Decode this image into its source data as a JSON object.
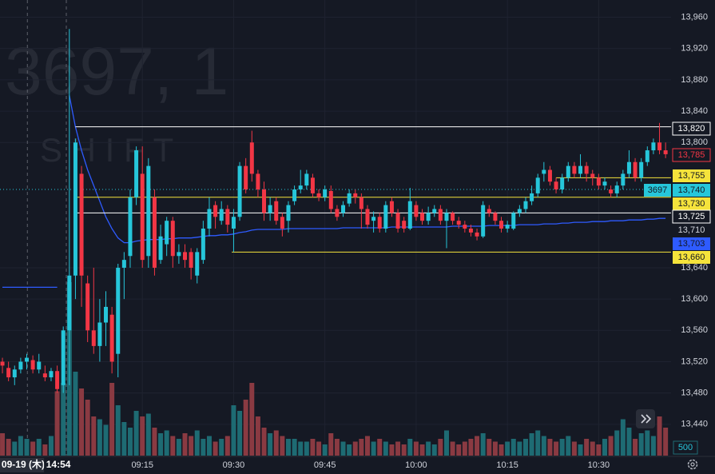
{
  "watermark": {
    "symbol": "3697, 1",
    "name": "S H I F T"
  },
  "chart_data": {
    "type": "candlestick",
    "x": [
      -8,
      -7,
      -6,
      -5,
      -4,
      -3,
      -2,
      -1,
      0,
      1,
      2,
      3,
      4,
      5,
      6,
      7,
      8,
      9,
      10,
      11,
      12,
      13,
      14,
      15,
      16,
      17,
      18,
      19,
      20,
      21,
      22,
      23,
      24,
      25,
      26,
      27,
      28,
      29,
      30,
      31,
      32,
      33,
      34,
      35,
      36,
      37,
      38,
      39,
      40,
      41,
      42,
      43,
      44,
      45,
      46,
      47,
      48,
      49,
      50,
      51,
      52,
      53,
      54,
      55,
      56,
      57,
      58,
      59,
      60,
      61,
      62,
      63,
      64,
      65,
      66,
      67,
      68,
      69,
      70,
      71,
      72,
      73,
      74,
      75,
      76,
      77,
      78,
      79,
      80,
      81,
      82,
      83,
      84,
      85,
      86,
      87,
      88,
      89,
      90,
      91,
      92,
      93,
      94,
      95,
      96,
      97,
      98,
      99,
      100,
      101
    ],
    "open": [
      13520,
      13512,
      13500,
      13510,
      13520,
      13522,
      13510,
      13505,
      13500,
      13508,
      13490,
      13560,
      13630,
      13760,
      13620,
      13560,
      13540,
      13570,
      13580,
      13530,
      13640,
      13655,
      13730,
      13760,
      13655,
      13730,
      13650,
      13670,
      13700,
      13655,
      13660,
      13660,
      13630,
      13650,
      13690,
      13720,
      13700,
      13715,
      13690,
      13705,
      13770,
      13800,
      13760,
      13740,
      13710,
      13725,
      13705,
      13700,
      13725,
      13740,
      13745,
      13755,
      13735,
      13730,
      13738,
      13715,
      13710,
      13722,
      13735,
      13730,
      13715,
      13700,
      13705,
      13690,
      13725,
      13710,
      13700,
      13690,
      13720,
      13710,
      13700,
      13710,
      13715,
      13700,
      13710,
      13700,
      13695,
      13690,
      13685,
      13680,
      13715,
      13710,
      13700,
      13690,
      13690,
      13710,
      13715,
      13725,
      13735,
      13760,
      13765,
      13750,
      13740,
      13755,
      13770,
      13760,
      13770,
      13760,
      13755,
      13745,
      13740,
      13735,
      13745,
      13760,
      13775,
      13755,
      13775,
      13790,
      13800,
      13790
    ],
    "high": [
      13525,
      13520,
      13515,
      13525,
      13530,
      13528,
      13530,
      13515,
      13512,
      13515,
      13565,
      13945,
      13805,
      13770,
      13630,
      13640,
      13600,
      13610,
      13590,
      13645,
      13660,
      13740,
      13795,
      13795,
      13780,
      13740,
      13695,
      13705,
      13705,
      13670,
      13670,
      13665,
      13665,
      13700,
      13730,
      13725,
      13725,
      13720,
      13715,
      13775,
      13780,
      13815,
      13765,
      13750,
      13730,
      13730,
      13710,
      13725,
      13745,
      13765,
      13765,
      13760,
      13740,
      13745,
      13745,
      13720,
      13725,
      13740,
      13740,
      13735,
      13720,
      13712,
      13710,
      13725,
      13730,
      13715,
      13705,
      13742,
      13725,
      13715,
      13718,
      13720,
      13720,
      13715,
      13712,
      13705,
      13700,
      13695,
      13690,
      13725,
      13720,
      13712,
      13705,
      13700,
      13712,
      13720,
      13730,
      13745,
      13760,
      13775,
      13770,
      13755,
      13760,
      13775,
      13775,
      13785,
      13775,
      13765,
      13760,
      13755,
      13745,
      13750,
      13765,
      13790,
      13780,
      13780,
      13795,
      13805,
      13825,
      13800
    ],
    "low": [
      13505,
      13495,
      13490,
      13505,
      13510,
      13505,
      13505,
      13495,
      13495,
      13480,
      13480,
      13490,
      13600,
      13590,
      13545,
      13530,
      13520,
      13540,
      13505,
      13500,
      13600,
      13640,
      13720,
      13640,
      13640,
      13630,
      13645,
      13655,
      13640,
      13645,
      13640,
      13625,
      13620,
      13645,
      13680,
      13690,
      13695,
      13685,
      13660,
      13700,
      13735,
      13750,
      13730,
      13700,
      13700,
      13695,
      13680,
      13685,
      13720,
      13735,
      13740,
      13730,
      13725,
      13725,
      13710,
      13700,
      13705,
      13718,
      13722,
      13690,
      13690,
      13685,
      13685,
      13685,
      13705,
      13685,
      13685,
      13688,
      13700,
      13695,
      13695,
      13705,
      13695,
      13665,
      13695,
      13690,
      13685,
      13680,
      13675,
      13678,
      13705,
      13695,
      13685,
      13685,
      13688,
      13705,
      13710,
      13720,
      13730,
      13750,
      13745,
      13735,
      13735,
      13750,
      13755,
      13755,
      13750,
      13745,
      13740,
      13740,
      13730,
      13730,
      13740,
      13755,
      13750,
      13750,
      13770,
      13785,
      13785,
      13780
    ],
    "close": [
      13515,
      13500,
      13510,
      13520,
      13525,
      13510,
      13520,
      13500,
      13508,
      13485,
      13560,
      13630,
      13800,
      13630,
      13560,
      13540,
      13570,
      13590,
      13520,
      13640,
      13650,
      13730,
      13790,
      13650,
      13770,
      13640,
      13680,
      13700,
      13655,
      13660,
      13650,
      13640,
      13660,
      13690,
      13715,
      13705,
      13715,
      13695,
      13705,
      13770,
      13740,
      13760,
      13740,
      13710,
      13720,
      13700,
      13690,
      13720,
      13740,
      13745,
      13760,
      13735,
      13730,
      13740,
      13715,
      13705,
      13720,
      13735,
      13730,
      13715,
      13695,
      13705,
      13690,
      13720,
      13710,
      13690,
      13690,
      13725,
      13705,
      13700,
      13710,
      13715,
      13700,
      13710,
      13700,
      13695,
      13690,
      13685,
      13680,
      13720,
      13710,
      13700,
      13690,
      13695,
      13710,
      13715,
      13725,
      13735,
      13755,
      13765,
      13750,
      13740,
      13755,
      13770,
      13760,
      13770,
      13760,
      13755,
      13745,
      13750,
      13735,
      13745,
      13760,
      13775,
      13755,
      13775,
      13790,
      13800,
      13790,
      13785
    ],
    "up_color": "#26c6da",
    "down_color": "#f23645",
    "volume": {
      "up_color": "#1e6b73",
      "down_color": "#8a3a42",
      "ylim": [
        0,
        4000
      ],
      "values": [
        400,
        300,
        250,
        350,
        300,
        250,
        300,
        200,
        350,
        1150,
        1300,
        3100,
        1500,
        1200,
        1000,
        700,
        650,
        550,
        1300,
        900,
        600,
        500,
        800,
        700,
        750,
        500,
        400,
        450,
        350,
        300,
        400,
        350,
        450,
        300,
        350,
        250,
        300,
        350,
        900,
        800,
        1000,
        1300,
        700,
        500,
        400,
        450,
        350,
        300,
        300,
        250,
        250,
        300,
        250,
        200,
        400,
        300,
        250,
        200,
        250,
        300,
        350,
        250,
        300,
        250,
        200,
        250,
        200,
        300,
        250,
        200,
        250,
        200,
        300,
        450,
        250,
        200,
        250,
        300,
        350,
        400,
        300,
        250,
        200,
        250,
        300,
        250,
        300,
        400,
        450,
        350,
        300,
        250,
        300,
        350,
        250,
        200,
        300,
        250,
        200,
        300,
        350,
        450,
        650,
        500,
        300,
        400,
        450,
        350,
        700,
        500
      ]
    },
    "vwap": {
      "color": "#2e5bff",
      "values": [
        13615,
        13615,
        13615,
        13615,
        13615,
        13615,
        13615,
        13615,
        13615,
        13615,
        null,
        13860,
        13820,
        13790,
        13765,
        13745,
        13725,
        13705,
        13690,
        13678,
        13672,
        13672,
        13674,
        13675,
        13676,
        13676,
        13676,
        13677,
        13677,
        13678,
        13678,
        13678,
        13679,
        13680,
        13681,
        13681,
        13682,
        13682,
        13683,
        13685,
        13686,
        13688,
        13689,
        13689,
        13689,
        13689,
        13689,
        13690,
        13690,
        13690,
        13690,
        13690,
        13690,
        13690,
        13690,
        13690,
        13691,
        13691,
        13691,
        13691,
        13691,
        13691,
        13691,
        13691,
        13692,
        13692,
        13692,
        13692,
        13692,
        13692,
        13692,
        13692,
        13692,
        13692,
        13693,
        13693,
        13693,
        13693,
        13693,
        13693,
        13694,
        13694,
        13694,
        13694,
        13694,
        13695,
        13695,
        13695,
        13695,
        13696,
        13696,
        13696,
        13697,
        13697,
        13698,
        13698,
        13698,
        13699,
        13699,
        13699,
        13700,
        13700,
        13700,
        13701,
        13701,
        13701,
        13702,
        13702,
        13703,
        13703
      ]
    },
    "xlim": [
      -8.4,
      101.9
    ],
    "ylim": [
      13400,
      13982
    ],
    "xticks": [
      {
        "value": -4.6,
        "label": "09-19 (木)"
      },
      {
        "value": 1.2,
        "label": "14:54"
      },
      {
        "value": 15,
        "label": "09:15"
      },
      {
        "value": 30,
        "label": "09:30"
      },
      {
        "value": 45,
        "label": "09:45"
      },
      {
        "value": 60,
        "label": "10:00"
      },
      {
        "value": 75,
        "label": "10:15"
      },
      {
        "value": 90,
        "label": "10:30"
      }
    ],
    "yticks": [
      {
        "value": 13960,
        "label": "13,960"
      },
      {
        "value": 13920,
        "label": "13,920"
      },
      {
        "value": 13880,
        "label": "13,880"
      },
      {
        "value": 13840,
        "label": "13,840"
      },
      {
        "value": 13800,
        "label": "13,800"
      },
      {
        "value": 13640,
        "label": "13,640"
      },
      {
        "value": 13600,
        "label": "13,600"
      },
      {
        "value": 13560,
        "label": "13,560"
      },
      {
        "value": 13520,
        "label": "13,520"
      },
      {
        "value": 13480,
        "label": "13,480"
      },
      {
        "value": 13440,
        "label": "13,440"
      }
    ],
    "session_breaks": [
      -3.9,
      2.5
    ],
    "grid": true,
    "levels": [
      {
        "value": 13820,
        "label": "13,820",
        "kind": "outline",
        "color": "#ffffff",
        "from": 4
      },
      {
        "value": 13785,
        "label": "13,785",
        "kind": "last",
        "color": "#f23645"
      },
      {
        "value": 13755,
        "label": "13,755",
        "kind": "fill",
        "color": "#f5e33b",
        "from": 83
      },
      {
        "value": 13740,
        "label": "13,740",
        "tag": "3697",
        "kind": "fill",
        "color": "#26c6da",
        "from": -8.4,
        "dotted": true
      },
      {
        "value": 13730,
        "label": "13,730",
        "kind": "fill",
        "color": "#f5e33b",
        "from": 3.7
      },
      {
        "value": 13725,
        "label": "13,725",
        "kind": "outline",
        "color": "#ffffff"
      },
      {
        "value": 13710,
        "label": "13,710",
        "kind": "plain",
        "color": "#ffffff",
        "from": 3.7
      },
      {
        "value": 13703,
        "label": "13,703",
        "kind": "fill",
        "color": "#2e5bff"
      },
      {
        "value": 13660,
        "label": "13,660",
        "kind": "fill",
        "color": "#f5e33b",
        "from": 29.7
      }
    ]
  }
}
